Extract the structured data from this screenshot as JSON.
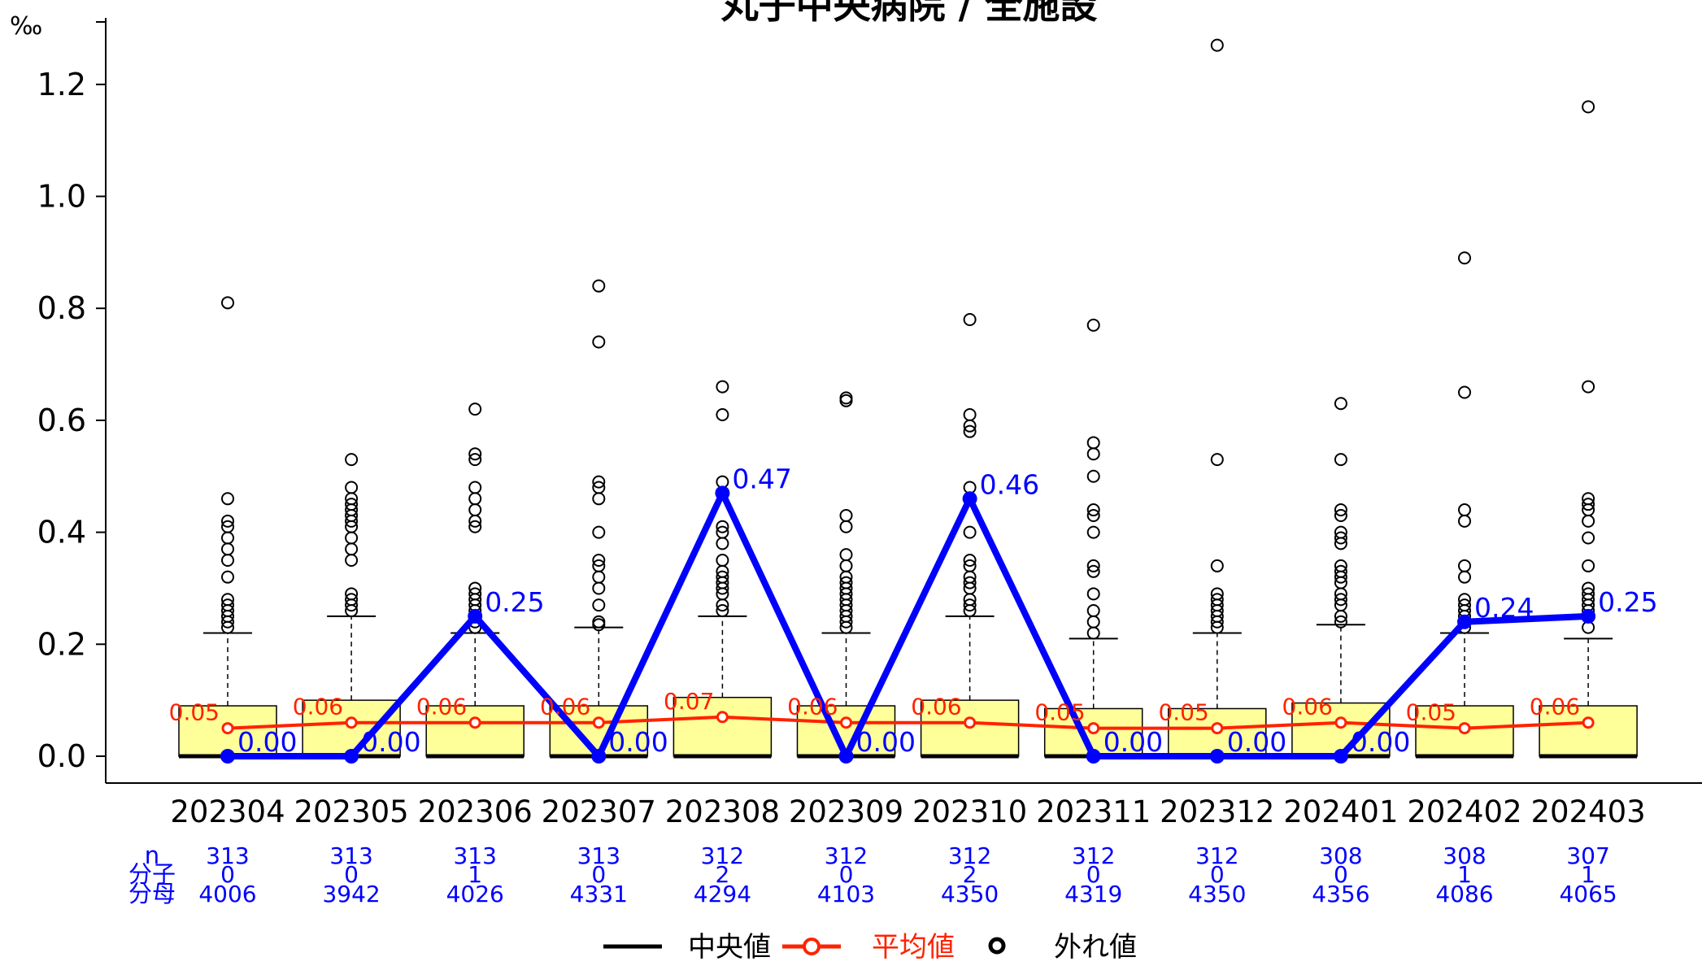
{
  "chart_data": {
    "type": "box",
    "title": "丸子中央病院 / 全施設",
    "ylabel": "‰",
    "ylim": [
      0,
      1.25
    ],
    "yticks": [
      "0.0",
      "0.2",
      "0.4",
      "0.6",
      "0.8",
      "1.0",
      "1.2"
    ],
    "categories": [
      "202304",
      "202305",
      "202306",
      "202307",
      "202308",
      "202309",
      "202310",
      "202311",
      "202312",
      "202401",
      "202402",
      "202403"
    ],
    "boxes": [
      {
        "q1": 0.0,
        "q3": 0.09,
        "median": 0.0,
        "whisker_high": 0.22
      },
      {
        "q1": 0.0,
        "q3": 0.1,
        "median": 0.0,
        "whisker_high": 0.25
      },
      {
        "q1": 0.0,
        "q3": 0.09,
        "median": 0.0,
        "whisker_high": 0.22
      },
      {
        "q1": 0.0,
        "q3": 0.09,
        "median": 0.0,
        "whisker_high": 0.23
      },
      {
        "q1": 0.0,
        "q3": 0.105,
        "median": 0.0,
        "whisker_high": 0.25
      },
      {
        "q1": 0.0,
        "q3": 0.09,
        "median": 0.0,
        "whisker_high": 0.22
      },
      {
        "q1": 0.0,
        "q3": 0.1,
        "median": 0.0,
        "whisker_high": 0.25
      },
      {
        "q1": 0.0,
        "q3": 0.085,
        "median": 0.0,
        "whisker_high": 0.21
      },
      {
        "q1": 0.0,
        "q3": 0.085,
        "median": 0.0,
        "whisker_high": 0.22
      },
      {
        "q1": 0.0,
        "q3": 0.095,
        "median": 0.0,
        "whisker_high": 0.235
      },
      {
        "q1": 0.0,
        "q3": 0.09,
        "median": 0.0,
        "whisker_high": 0.22
      },
      {
        "q1": 0.0,
        "q3": 0.09,
        "median": 0.0,
        "whisker_high": 0.21
      }
    ],
    "outliers": [
      [
        0.81,
        0.46,
        0.42,
        0.41,
        0.39,
        0.37,
        0.35,
        0.32,
        0.28,
        0.27,
        0.26,
        0.25,
        0.24,
        0.23
      ],
      [
        0.53,
        0.48,
        0.46,
        0.45,
        0.44,
        0.43,
        0.42,
        0.41,
        0.39,
        0.37,
        0.35,
        0.29,
        0.28,
        0.27,
        0.26
      ],
      [
        0.62,
        0.54,
        0.53,
        0.48,
        0.46,
        0.44,
        0.42,
        0.41,
        0.3,
        0.29,
        0.28,
        0.27,
        0.26,
        0.25,
        0.24,
        0.23
      ],
      [
        0.84,
        0.74,
        0.49,
        0.48,
        0.46,
        0.4,
        0.35,
        0.34,
        0.32,
        0.3,
        0.27,
        0.24,
        0.235
      ],
      [
        0.66,
        0.61,
        0.49,
        0.41,
        0.4,
        0.38,
        0.35,
        0.33,
        0.32,
        0.31,
        0.3,
        0.29,
        0.27,
        0.26
      ],
      [
        0.64,
        0.635,
        0.43,
        0.41,
        0.36,
        0.34,
        0.32,
        0.31,
        0.3,
        0.29,
        0.28,
        0.27,
        0.26,
        0.25,
        0.24,
        0.23
      ],
      [
        0.78,
        0.61,
        0.59,
        0.58,
        0.48,
        0.4,
        0.35,
        0.34,
        0.32,
        0.31,
        0.3,
        0.28,
        0.27,
        0.26
      ],
      [
        0.77,
        0.56,
        0.54,
        0.5,
        0.44,
        0.43,
        0.4,
        0.34,
        0.33,
        0.29,
        0.26,
        0.24,
        0.22
      ],
      [
        1.27,
        0.53,
        0.34,
        0.29,
        0.28,
        0.27,
        0.26,
        0.25,
        0.24,
        0.23
      ],
      [
        0.63,
        0.53,
        0.44,
        0.43,
        0.4,
        0.39,
        0.38,
        0.34,
        0.33,
        0.32,
        0.31,
        0.29,
        0.28,
        0.27,
        0.25,
        0.24
      ],
      [
        0.89,
        0.65,
        0.44,
        0.42,
        0.34,
        0.32,
        0.28,
        0.27,
        0.26,
        0.25,
        0.24,
        0.23
      ],
      [
        1.16,
        0.66,
        0.46,
        0.45,
        0.44,
        0.42,
        0.39,
        0.34,
        0.3,
        0.29,
        0.28,
        0.27,
        0.26,
        0.25,
        0.23
      ]
    ],
    "series": [
      {
        "name": "平均値",
        "color": "#ff2200",
        "values": [
          0.05,
          0.06,
          0.06,
          0.06,
          0.07,
          0.06,
          0.06,
          0.05,
          0.05,
          0.06,
          0.05,
          0.06
        ],
        "labels": [
          "0.05",
          "0.06",
          "0.06",
          "0.06",
          "0.07",
          "0.06",
          "0.06",
          "0.05",
          "0.05",
          "0.06",
          "0.05",
          "0.06"
        ]
      },
      {
        "name": "",
        "color": "#0000ff",
        "values": [
          0.0,
          0.0,
          0.25,
          0.0,
          0.47,
          0.0,
          0.46,
          0.0,
          0.0,
          0.0,
          0.24,
          0.25
        ],
        "labels": [
          "0.00",
          "0.00",
          "0.25",
          "0.00",
          "0.47",
          "0.00",
          "0.46",
          "0.00",
          "0.00",
          "0.00",
          "0.24",
          "0.25"
        ]
      }
    ],
    "table": {
      "row_labels": [
        "n",
        "分子",
        "分母"
      ],
      "n": [
        "313",
        "313",
        "313",
        "313",
        "312",
        "312",
        "312",
        "312",
        "312",
        "308",
        "308",
        "307"
      ],
      "numerator": [
        "0",
        "0",
        "1",
        "0",
        "2",
        "0",
        "2",
        "0",
        "0",
        "0",
        "1",
        "1"
      ],
      "denominator": [
        "4006",
        "3942",
        "4026",
        "4331",
        "4294",
        "4103",
        "4350",
        "4319",
        "4350",
        "4356",
        "4086",
        "4065"
      ]
    },
    "legend": {
      "position": "bottom",
      "items": [
        {
          "label": "中央値",
          "symbol": "line",
          "color": "#000000"
        },
        {
          "label": "平均値",
          "symbol": "line-point",
          "color": "#ff2200"
        },
        {
          "label": "外れ値",
          "symbol": "circle",
          "color": "#000000"
        }
      ]
    },
    "box_fill": "#ffff99",
    "grid": false
  }
}
